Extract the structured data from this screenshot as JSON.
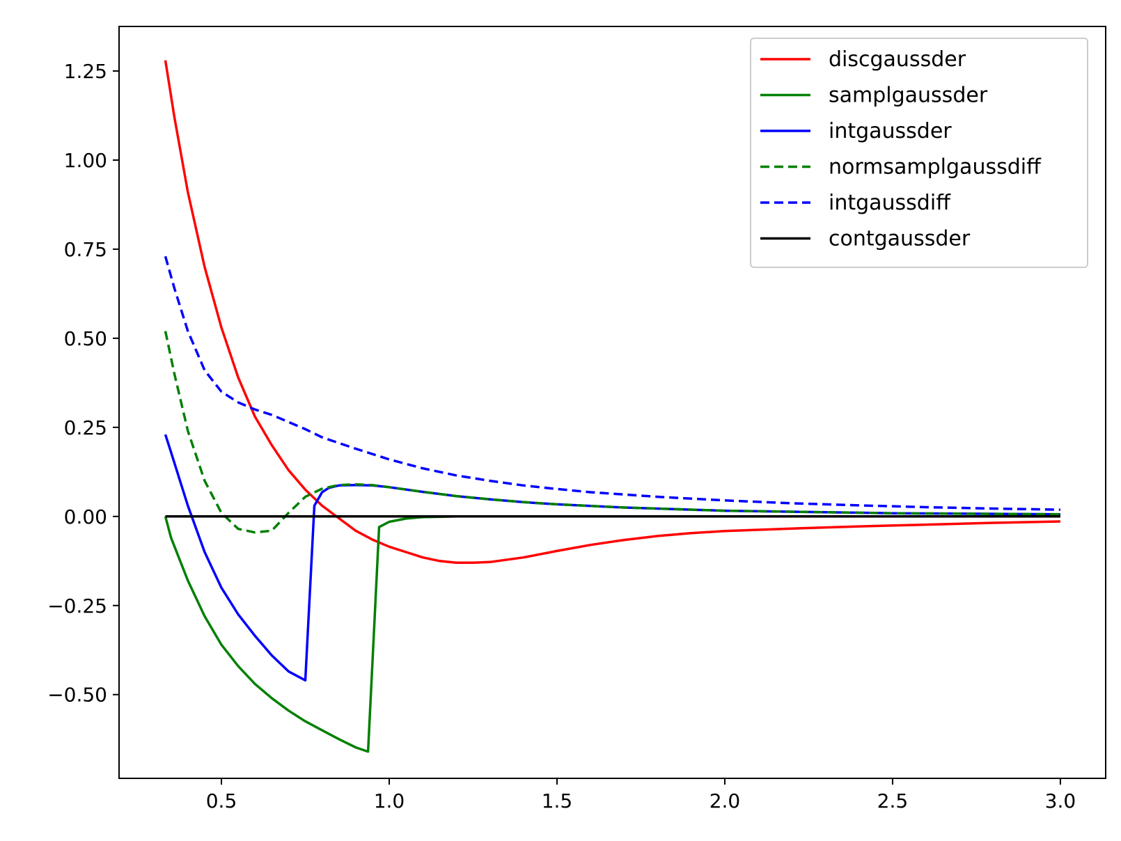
{
  "chart_data": {
    "type": "line",
    "title": "",
    "xlabel": "",
    "ylabel": "",
    "xlim": [
      0.195,
      3.135
    ],
    "ylim": [
      -0.735,
      1.375
    ],
    "xticks": [
      {
        "value": 0.5,
        "label": "0.5"
      },
      {
        "value": 1.0,
        "label": "1.0"
      },
      {
        "value": 1.5,
        "label": "1.5"
      },
      {
        "value": 2.0,
        "label": "2.0"
      },
      {
        "value": 2.5,
        "label": "2.5"
      },
      {
        "value": 3.0,
        "label": "3.0"
      }
    ],
    "yticks": [
      {
        "value": -0.5,
        "label": "−0.50"
      },
      {
        "value": -0.25,
        "label": "−0.25"
      },
      {
        "value": 0.0,
        "label": "0.00"
      },
      {
        "value": 0.25,
        "label": "0.25"
      },
      {
        "value": 0.5,
        "label": "0.50"
      },
      {
        "value": 0.75,
        "label": "0.75"
      },
      {
        "value": 1.0,
        "label": "1.00"
      },
      {
        "value": 1.25,
        "label": "1.25"
      }
    ],
    "grid": false,
    "legend_position": "top-right",
    "series": [
      {
        "name": "discgaussder",
        "color": "#ff0000",
        "dash": "solid",
        "x": [
          0.333,
          0.36,
          0.4,
          0.45,
          0.5,
          0.55,
          0.6,
          0.65,
          0.7,
          0.75,
          0.8,
          0.85,
          0.9,
          0.95,
          1.0,
          1.05,
          1.1,
          1.15,
          1.2,
          1.25,
          1.3,
          1.4,
          1.5,
          1.6,
          1.7,
          1.8,
          1.9,
          2.0,
          2.2,
          2.4,
          2.6,
          2.8,
          3.0
        ],
        "y": [
          1.28,
          1.12,
          0.91,
          0.7,
          0.53,
          0.39,
          0.28,
          0.2,
          0.13,
          0.075,
          0.03,
          -0.005,
          -0.04,
          -0.065,
          -0.085,
          -0.1,
          -0.115,
          -0.125,
          -0.13,
          -0.13,
          -0.128,
          -0.115,
          -0.097,
          -0.08,
          -0.066,
          -0.055,
          -0.047,
          -0.041,
          -0.034,
          -0.028,
          -0.023,
          -0.018,
          -0.014
        ]
      },
      {
        "name": "samplgaussder",
        "color": "#008000",
        "dash": "solid",
        "x": [
          0.333,
          0.35,
          0.4,
          0.45,
          0.5,
          0.55,
          0.6,
          0.65,
          0.7,
          0.75,
          0.8,
          0.85,
          0.9,
          0.937,
          0.97,
          1.0,
          1.05,
          1.1,
          1.2,
          1.3,
          1.5,
          1.7,
          2.0,
          2.5,
          3.0
        ],
        "y": [
          0.0,
          -0.06,
          -0.18,
          -0.28,
          -0.36,
          -0.42,
          -0.47,
          -0.51,
          -0.545,
          -0.575,
          -0.6,
          -0.625,
          -0.648,
          -0.66,
          -0.03,
          -0.015,
          -0.006,
          -0.002,
          0.0,
          0.0,
          0.0,
          0.0,
          0.0,
          0.0,
          0.0
        ]
      },
      {
        "name": "intgaussder",
        "color": "#0000ff",
        "dash": "solid",
        "x": [
          0.333,
          0.35,
          0.4,
          0.45,
          0.5,
          0.55,
          0.6,
          0.65,
          0.7,
          0.75,
          0.777,
          0.8,
          0.82,
          0.85,
          0.9,
          0.95,
          1.0,
          1.1,
          1.2,
          1.3,
          1.4,
          1.5,
          1.7,
          2.0,
          2.5,
          3.0
        ],
        "y": [
          0.23,
          0.18,
          0.03,
          -0.1,
          -0.2,
          -0.275,
          -0.335,
          -0.39,
          -0.435,
          -0.46,
          0.03,
          0.068,
          0.08,
          0.087,
          0.088,
          0.087,
          0.082,
          0.069,
          0.057,
          0.048,
          0.04,
          0.034,
          0.025,
          0.016,
          0.009,
          0.006
        ]
      },
      {
        "name": "normsamplgaussdiff",
        "color": "#008000",
        "dash": "dashed",
        "x": [
          0.333,
          0.36,
          0.4,
          0.45,
          0.5,
          0.55,
          0.6,
          0.65,
          0.7,
          0.75,
          0.8,
          0.85,
          0.9,
          0.95,
          1.0,
          1.1,
          1.2,
          1.3,
          1.4,
          1.5,
          1.7,
          2.0,
          2.5,
          3.0
        ],
        "y": [
          0.52,
          0.4,
          0.24,
          0.1,
          0.01,
          -0.035,
          -0.045,
          -0.04,
          0.01,
          0.055,
          0.078,
          0.088,
          0.09,
          0.088,
          0.082,
          0.069,
          0.057,
          0.048,
          0.04,
          0.034,
          0.025,
          0.016,
          0.009,
          0.006
        ]
      },
      {
        "name": "intgaussdiff",
        "color": "#0000ff",
        "dash": "dashed",
        "x": [
          0.333,
          0.36,
          0.4,
          0.45,
          0.5,
          0.55,
          0.6,
          0.65,
          0.7,
          0.75,
          0.8,
          0.9,
          1.0,
          1.1,
          1.2,
          1.3,
          1.4,
          1.5,
          1.6,
          1.8,
          2.0,
          2.2,
          2.4,
          2.6,
          2.8,
          3.0
        ],
        "y": [
          0.73,
          0.64,
          0.52,
          0.41,
          0.35,
          0.32,
          0.3,
          0.285,
          0.265,
          0.245,
          0.222,
          0.19,
          0.16,
          0.135,
          0.115,
          0.1,
          0.087,
          0.077,
          0.068,
          0.055,
          0.045,
          0.037,
          0.031,
          0.026,
          0.022,
          0.019
        ]
      },
      {
        "name": "contgaussder",
        "color": "#000000",
        "dash": "solid",
        "x": [
          0.333,
          3.0
        ],
        "y": [
          0.0,
          0.0
        ]
      }
    ]
  }
}
